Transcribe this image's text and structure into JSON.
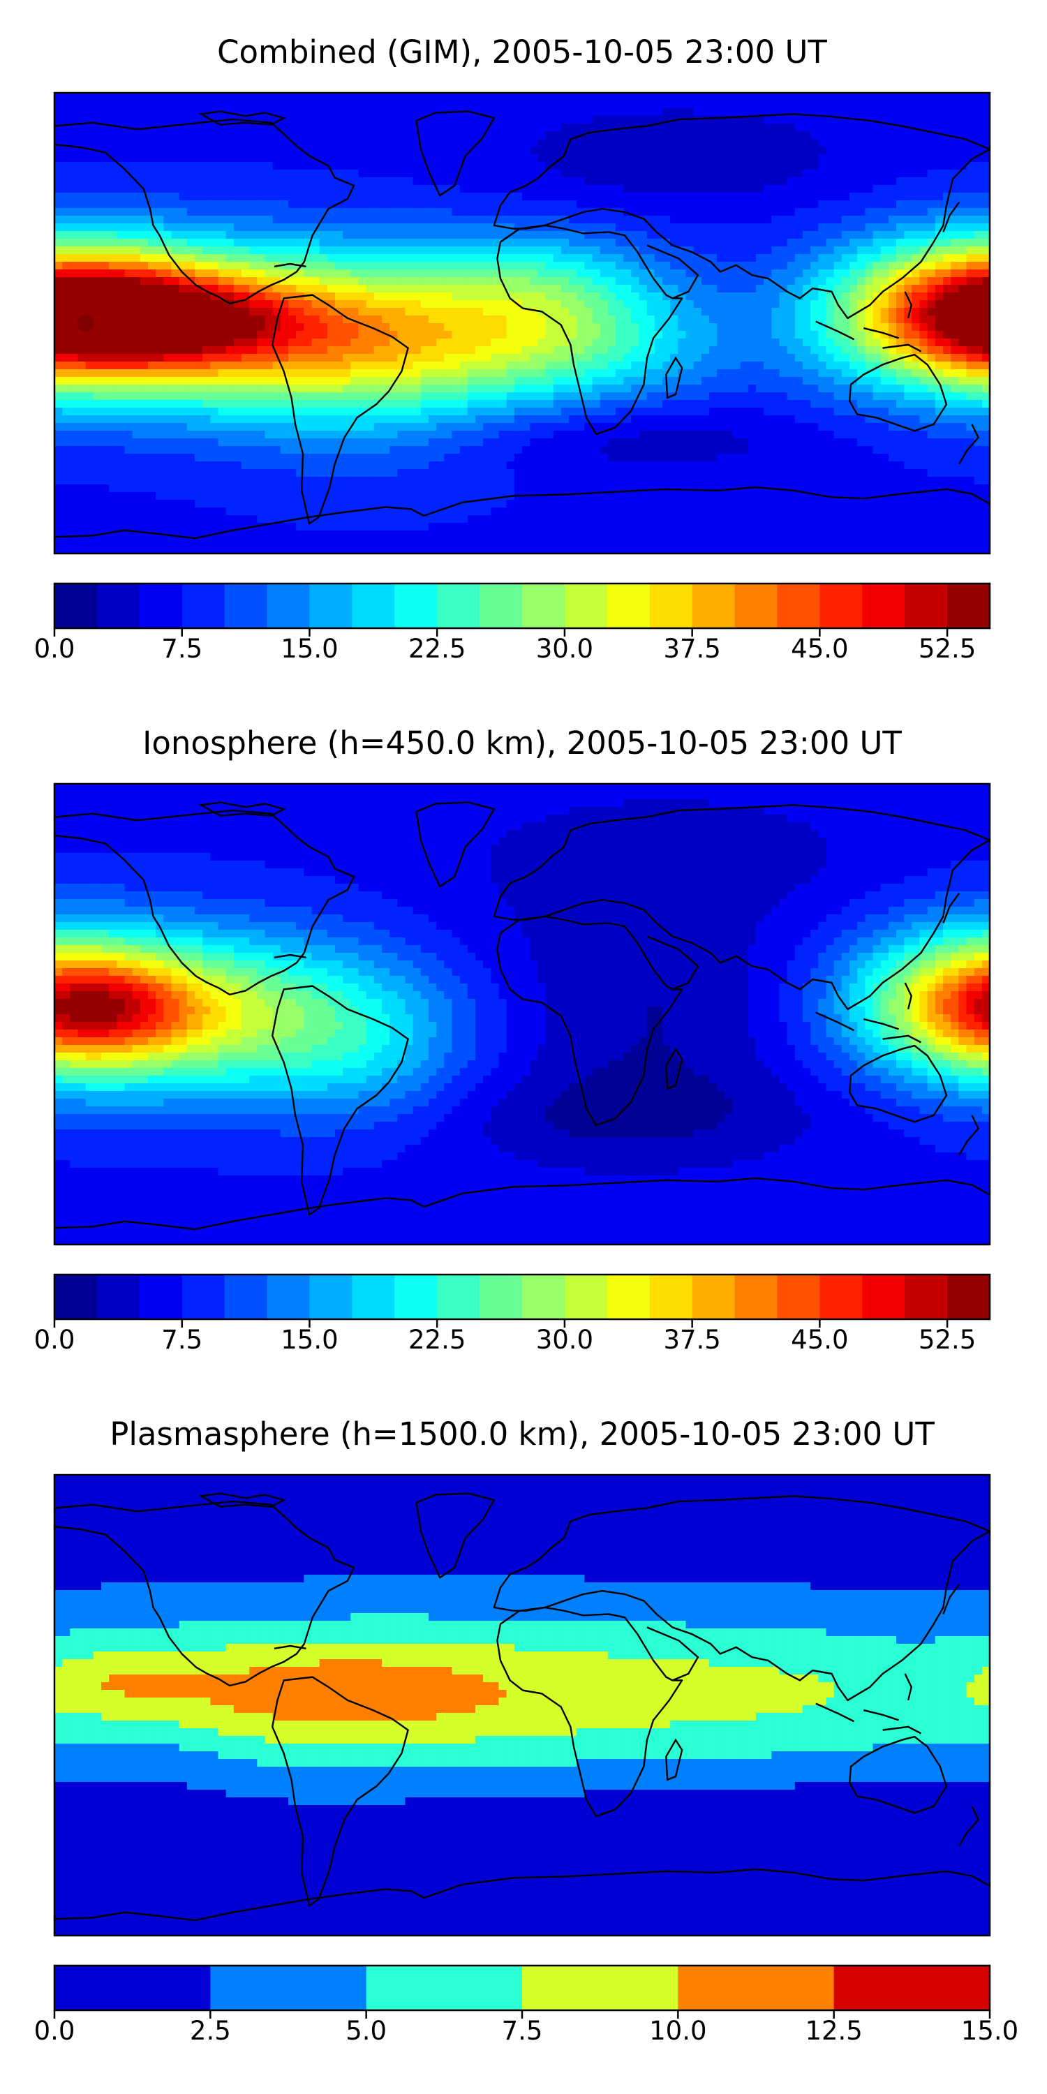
{
  "chart_data": [
    {
      "type": "heatmap",
      "title": "Combined (GIM), 2005-10-05 23:00 UT",
      "colorbar": {
        "levels": [
          0.0,
          2.5,
          5.0,
          7.5,
          10.0,
          12.5,
          15.0,
          17.5,
          20.0,
          22.5,
          25.0,
          27.5,
          30.0,
          32.5,
          35.0,
          37.5,
          40.0,
          42.5,
          45.0,
          47.5,
          50.0,
          52.5,
          55.0
        ],
        "tick_labels": [
          "0.0",
          "7.5",
          "15.0",
          "22.5",
          "30.0",
          "37.5",
          "45.0",
          "52.5"
        ],
        "tick_values": [
          0.0,
          7.5,
          15.0,
          22.5,
          30.0,
          37.5,
          45.0,
          52.5
        ],
        "range": [
          0,
          55
        ]
      },
      "xlim": [
        -180,
        180
      ],
      "ylim": [
        -90,
        90
      ],
      "background": 7,
      "blobs": [
        {
          "lon": -90,
          "lat": -2,
          "sx": 80,
          "sy": 22,
          "amp": 30
        },
        {
          "lon": -160,
          "lat": 3,
          "sx": 35,
          "sy": 14,
          "amp": 12
        },
        {
          "lon": -120,
          "lat": 1,
          "sx": 30,
          "sy": 12,
          "amp": 9
        },
        {
          "lon": 178,
          "lat": 5,
          "sx": 40,
          "sy": 20,
          "amp": 33
        },
        {
          "lon": -60,
          "lat": -25,
          "sx": 40,
          "sy": 25,
          "amp": 6
        },
        {
          "lon": 10,
          "lat": 15,
          "sx": 30,
          "sy": 15,
          "amp": 8
        },
        {
          "lon": 20,
          "lat": -10,
          "sx": 40,
          "sy": 15,
          "amp": 8
        },
        {
          "lon": 60,
          "lat": 65,
          "sx": 50,
          "sy": 15,
          "amp": -4
        },
        {
          "lon": 40,
          "lat": -45,
          "sx": 50,
          "sy": 10,
          "amp": -4
        }
      ],
      "max_marker": {
        "lon": -168,
        "lat": 0,
        "value": 54
      }
    },
    {
      "type": "heatmap",
      "title": "Ionosphere  (h=450.0 km), 2005-10-05 23:00 UT",
      "colorbar": {
        "levels": [
          0.0,
          2.5,
          5.0,
          7.5,
          10.0,
          12.5,
          15.0,
          17.5,
          20.0,
          22.5,
          25.0,
          27.5,
          30.0,
          32.5,
          35.0,
          37.5,
          40.0,
          42.5,
          45.0,
          47.5,
          50.0,
          52.5,
          55.0
        ],
        "tick_labels": [
          "0.0",
          "7.5",
          "15.0",
          "22.5",
          "30.0",
          "37.5",
          "45.0",
          "52.5"
        ],
        "tick_values": [
          0.0,
          7.5,
          15.0,
          22.5,
          30.0,
          37.5,
          45.0,
          52.5
        ],
        "range": [
          0,
          55
        ]
      },
      "xlim": [
        -180,
        180
      ],
      "ylim": [
        -90,
        90
      ],
      "background": 7,
      "blobs": [
        {
          "lon": -120,
          "lat": 0,
          "sx": 60,
          "sy": 22,
          "amp": 22
        },
        {
          "lon": -160,
          "lat": 2,
          "sx": 25,
          "sy": 12,
          "amp": 9
        },
        {
          "lon": 178,
          "lat": 5,
          "sx": 35,
          "sy": 20,
          "amp": 26
        },
        {
          "lon": 40,
          "lat": 0,
          "sx": 60,
          "sy": 40,
          "amp": -5
        },
        {
          "lon": 40,
          "lat": -40,
          "sx": 50,
          "sy": 12,
          "amp": -3
        },
        {
          "lon": 60,
          "lat": 65,
          "sx": 50,
          "sy": 15,
          "amp": -3
        },
        {
          "lon": -60,
          "lat": -20,
          "sx": 30,
          "sy": 20,
          "amp": 5
        }
      ]
    },
    {
      "type": "heatmap",
      "title": "Plasmasphere (h=1500.0 km), 2005-10-05 23:00 UT",
      "colorbar": {
        "levels": [
          0.0,
          2.5,
          5.0,
          7.5,
          10.0,
          12.5,
          15.0
        ],
        "tick_labels": [
          "0.0",
          "2.5",
          "5.0",
          "7.5",
          "10.0",
          "12.5",
          "15.0"
        ],
        "tick_values": [
          0.0,
          2.5,
          5.0,
          7.5,
          10.0,
          12.5,
          15.0
        ],
        "range": [
          0,
          15
        ]
      },
      "xlim": [
        -180,
        180
      ],
      "ylim": [
        -90,
        90
      ],
      "background": 1.2,
      "blobs": [
        {
          "lon": -30,
          "lat": 5,
          "sx": 160,
          "sy": 24,
          "amp": 7.5
        },
        {
          "lon": -75,
          "lat": 5,
          "sx": 50,
          "sy": 14,
          "amp": 3.3
        },
        {
          "lon": -155,
          "lat": 10,
          "sx": 18,
          "sy": 8,
          "amp": 2.2
        },
        {
          "lon": 130,
          "lat": 5,
          "sx": 60,
          "sy": 20,
          "amp": 1.5
        },
        {
          "lon": 100,
          "lat": -45,
          "sx": 80,
          "sy": 10,
          "amp": -1.5
        },
        {
          "lon": 0,
          "lat": -60,
          "sx": 100,
          "sy": 10,
          "amp": -1.0
        },
        {
          "lon": -140,
          "lat": -20,
          "sx": 20,
          "sy": 12,
          "amp": -1.2
        }
      ]
    }
  ]
}
